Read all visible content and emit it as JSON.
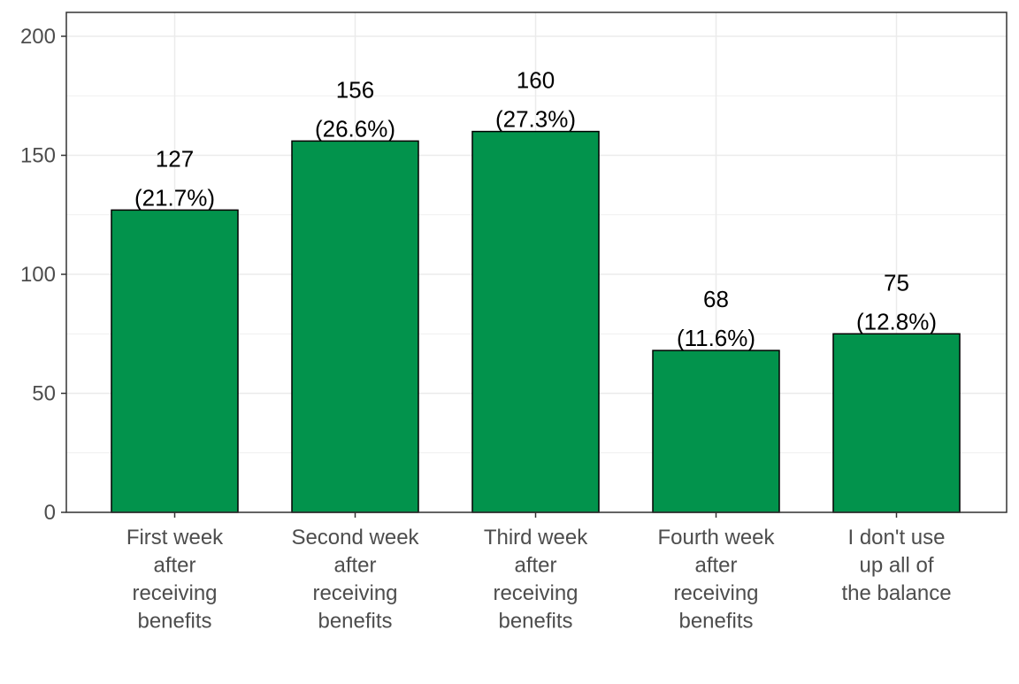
{
  "chart_data": {
    "type": "bar",
    "title": "",
    "xlabel": "",
    "ylabel": "",
    "categories": [
      [
        "First week",
        "after",
        "receiving",
        "benefits"
      ],
      [
        "Second week",
        "after",
        "receiving",
        "benefits"
      ],
      [
        "Third week",
        "after",
        "receiving",
        "benefits"
      ],
      [
        "Fourth week",
        "after",
        "receiving",
        "benefits"
      ],
      [
        "I don't use",
        "up all of",
        "the balance"
      ]
    ],
    "values": [
      127,
      156,
      160,
      68,
      75
    ],
    "data_labels": [
      {
        "count": "127",
        "percent": "(21.7%)"
      },
      {
        "count": "156",
        "percent": "(26.6%)"
      },
      {
        "count": "160",
        "percent": "(27.3%)"
      },
      {
        "count": "68",
        "percent": "(11.6%)"
      },
      {
        "count": "75",
        "percent": "(12.8%)"
      }
    ],
    "ylim": [
      0,
      200
    ],
    "yticks": [
      "0",
      "50",
      "100",
      "150",
      "200"
    ],
    "grid": true,
    "legend": "none",
    "colors": {
      "bar_fill": "#02934C",
      "bar_stroke": "#000000",
      "grid": "#ebebeb",
      "panel_border": "#333333",
      "axis_text": "#4d4d4d"
    }
  }
}
